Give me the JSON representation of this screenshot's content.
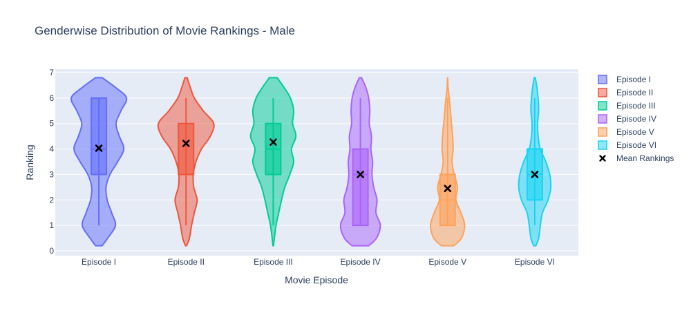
{
  "chart_data": {
    "type": "violin",
    "title": "Genderwise Distribution of Movie Rankings - Male",
    "xlabel": "Movie Episode",
    "ylabel": "Ranking",
    "ylim": [
      0,
      7
    ],
    "yticks": [
      "0",
      "1",
      "2",
      "3",
      "4",
      "5",
      "6",
      "7"
    ],
    "grid": true,
    "legend_position": "right",
    "categories": [
      "Episode I",
      "Episode II",
      "Episode III",
      "Episode IV",
      "Episode V",
      "Episode VI"
    ],
    "series": [
      {
        "name": "Episode I",
        "color": "#636efa",
        "box": {
          "min": 1,
          "q1": 3,
          "median": 4,
          "q3": 6,
          "max": 6
        },
        "mean": 4.03,
        "density": [
          [
            0.2,
            0.12
          ],
          [
            0.5,
            0.32
          ],
          [
            1.0,
            0.6
          ],
          [
            1.5,
            0.46
          ],
          [
            2.0,
            0.3
          ],
          [
            2.5,
            0.26
          ],
          [
            3.0,
            0.4
          ],
          [
            3.5,
            0.68
          ],
          [
            4.0,
            0.9
          ],
          [
            4.5,
            0.74
          ],
          [
            5.0,
            0.62
          ],
          [
            5.5,
            0.8
          ],
          [
            6.0,
            1.0
          ],
          [
            6.4,
            0.62
          ],
          [
            6.8,
            0.12
          ]
        ]
      },
      {
        "name": "Episode II",
        "color": "#ef553b",
        "box": {
          "min": 1,
          "q1": 3,
          "median": 3,
          "q3": 5,
          "max": 6
        },
        "mean": 4.22,
        "density": [
          [
            0.2,
            0.02
          ],
          [
            0.5,
            0.12
          ],
          [
            1.0,
            0.2
          ],
          [
            1.5,
            0.3
          ],
          [
            2.0,
            0.4
          ],
          [
            2.5,
            0.28
          ],
          [
            3.0,
            0.26
          ],
          [
            3.5,
            0.36
          ],
          [
            4.0,
            0.56
          ],
          [
            4.5,
            0.88
          ],
          [
            5.0,
            1.0
          ],
          [
            5.5,
            0.62
          ],
          [
            6.0,
            0.3
          ],
          [
            6.4,
            0.16
          ],
          [
            6.8,
            0.04
          ]
        ]
      },
      {
        "name": "Episode III",
        "color": "#00cc96",
        "box": {
          "min": 1,
          "q1": 3,
          "median": 4,
          "q3": 5,
          "max": 6
        },
        "mean": 4.27,
        "density": [
          [
            0.2,
            0.01
          ],
          [
            0.5,
            0.04
          ],
          [
            1.0,
            0.1
          ],
          [
            1.5,
            0.2
          ],
          [
            2.0,
            0.3
          ],
          [
            2.5,
            0.42
          ],
          [
            3.0,
            0.6
          ],
          [
            3.5,
            0.74
          ],
          [
            4.0,
            0.66
          ],
          [
            4.5,
            0.82
          ],
          [
            5.0,
            0.7
          ],
          [
            5.5,
            0.74
          ],
          [
            6.0,
            0.62
          ],
          [
            6.4,
            0.4
          ],
          [
            6.8,
            0.14
          ]
        ]
      },
      {
        "name": "Episode IV",
        "color": "#ab63fa",
        "box": {
          "min": 1,
          "q1": 1,
          "median": 3,
          "q3": 4,
          "max": 6
        },
        "mean": 3.0,
        "density": [
          [
            0.2,
            0.3
          ],
          [
            0.5,
            0.58
          ],
          [
            1.0,
            0.72
          ],
          [
            1.5,
            0.56
          ],
          [
            2.0,
            0.6
          ],
          [
            2.5,
            0.48
          ],
          [
            3.0,
            0.42
          ],
          [
            3.5,
            0.44
          ],
          [
            4.0,
            0.38
          ],
          [
            4.5,
            0.4
          ],
          [
            5.0,
            0.32
          ],
          [
            5.5,
            0.34
          ],
          [
            6.0,
            0.3
          ],
          [
            6.4,
            0.2
          ],
          [
            6.8,
            0.04
          ]
        ]
      },
      {
        "name": "Episode V",
        "color": "#ffa15a",
        "box": {
          "min": 1,
          "q1": 1,
          "median": 2,
          "q3": 3,
          "max": 6
        },
        "mean": 2.45,
        "density": [
          [
            0.2,
            0.22
          ],
          [
            0.5,
            0.5
          ],
          [
            1.0,
            0.62
          ],
          [
            1.5,
            0.48
          ],
          [
            2.0,
            0.3
          ],
          [
            2.5,
            0.36
          ],
          [
            3.0,
            0.24
          ],
          [
            3.5,
            0.16
          ],
          [
            4.0,
            0.2
          ],
          [
            4.5,
            0.18
          ],
          [
            5.0,
            0.14
          ],
          [
            5.5,
            0.1
          ],
          [
            6.0,
            0.06
          ],
          [
            6.4,
            0.02
          ],
          [
            6.8,
            0.0
          ]
        ]
      },
      {
        "name": "Episode VI",
        "color": "#19d3f3",
        "box": {
          "min": 1,
          "q1": 2,
          "median": 3,
          "q3": 4,
          "max": 6
        },
        "mean": 3.0,
        "density": [
          [
            0.2,
            0.04
          ],
          [
            0.5,
            0.14
          ],
          [
            1.0,
            0.2
          ],
          [
            1.5,
            0.28
          ],
          [
            2.0,
            0.48
          ],
          [
            2.5,
            0.58
          ],
          [
            3.0,
            0.54
          ],
          [
            3.5,
            0.4
          ],
          [
            4.0,
            0.2
          ],
          [
            4.5,
            0.12
          ],
          [
            5.0,
            0.1
          ],
          [
            5.5,
            0.14
          ],
          [
            6.0,
            0.12
          ],
          [
            6.4,
            0.08
          ],
          [
            6.8,
            0.02
          ]
        ]
      }
    ],
    "mean_marker": {
      "name": "Mean Rankings",
      "color": "#000000",
      "symbol": "x"
    }
  }
}
